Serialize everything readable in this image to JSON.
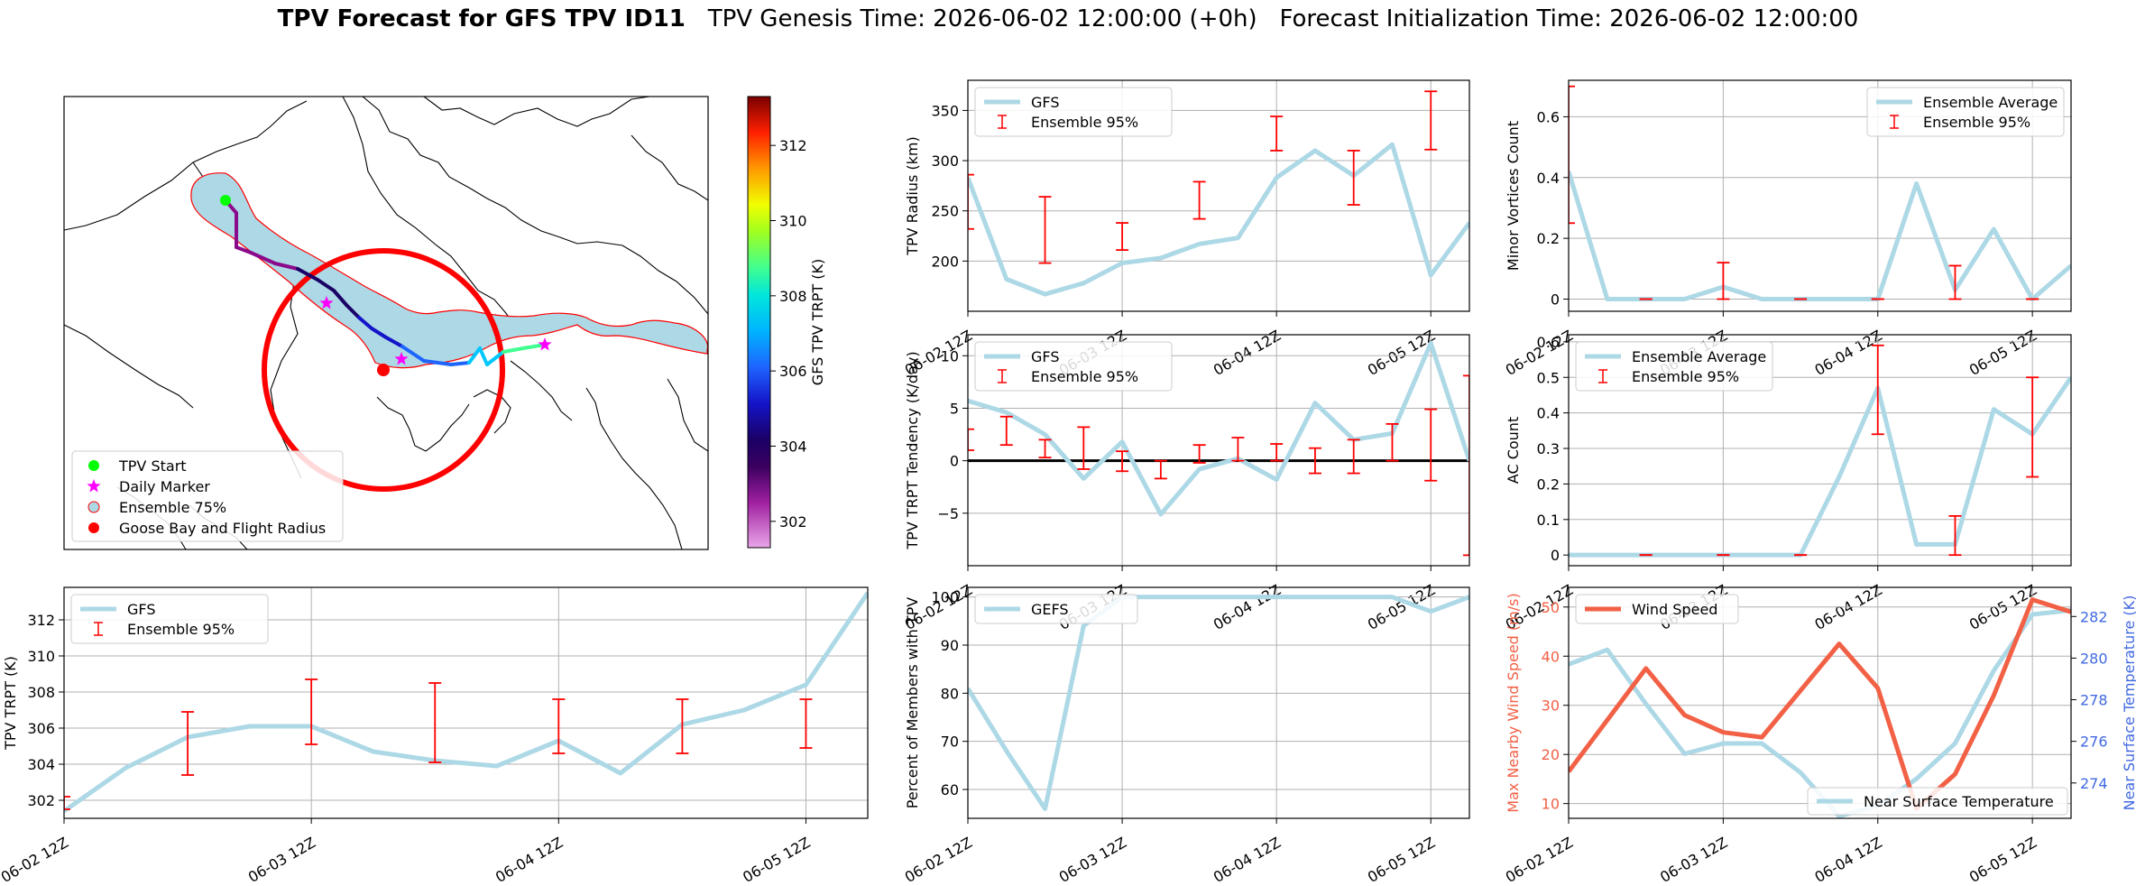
{
  "title": {
    "bold": "TPV Forecast for GFS TPV ID11",
    "genesis": "TPV Genesis Time: 2026-06-02 12:00:00 (+0h)",
    "init": "Forecast Initialization Time: 2026-06-02 12:00:00"
  },
  "colors": {
    "gfs_line": "#add8e6",
    "errorbar": "#ff0000",
    "wind": "#f26045",
    "temp_axis": "#4169e1",
    "land_fill": "#ffffff",
    "ensemble_fill": "#add8e6"
  },
  "time_ticks": [
    "06-02 12Z",
    "06-03 12Z",
    "06-04 12Z",
    "06-05 12Z"
  ],
  "chart_data": [
    {
      "id": "map",
      "type": "map",
      "legend": [
        "TPV Start",
        "Daily Marker",
        "Ensemble 75%",
        "Goose Bay and Flight Radius"
      ],
      "legend_colors": [
        "#00ff00",
        "#ff00ff",
        "#add8e6",
        "#ff0000"
      ],
      "colorbar": {
        "label": "GFS TPV TRPT (K)",
        "ticks": [
          302,
          304,
          306,
          308,
          310,
          312
        ],
        "range": [
          301.3,
          313.3
        ]
      },
      "track_trpt": [
        302.3,
        302.4,
        302.6,
        302.9,
        303.2,
        303.6,
        304.0,
        304.6,
        305.3,
        305.8,
        306.4,
        307.0,
        307.6,
        308.2
      ]
    },
    {
      "id": "radius",
      "type": "line",
      "ylabel": "TPV Radius (km)",
      "ylim": [
        150,
        380
      ],
      "yticks": [
        200,
        250,
        300,
        350
      ],
      "legend": [
        "GFS",
        "Ensemble 95%"
      ],
      "legend_pos": "top-left",
      "x": [
        0,
        0.25,
        0.5,
        0.75,
        1,
        1.25,
        1.5,
        1.75,
        2,
        2.25,
        2.5,
        2.75,
        3,
        3.25
      ],
      "values": [
        283,
        182,
        167,
        178,
        198,
        203,
        217,
        223,
        283,
        310,
        285,
        316,
        186,
        238
      ],
      "errorbars": [
        {
          "x": 0,
          "lo": 232,
          "hi": 286
        },
        {
          "x": 0.5,
          "lo": 198,
          "hi": 264
        },
        {
          "x": 1,
          "lo": 211,
          "hi": 238
        },
        {
          "x": 1.5,
          "lo": 242,
          "hi": 279
        },
        {
          "x": 2,
          "lo": 310,
          "hi": 344
        },
        {
          "x": 2.5,
          "lo": 256,
          "hi": 310
        },
        {
          "x": 3,
          "lo": 311,
          "hi": 369
        }
      ]
    },
    {
      "id": "minor",
      "type": "line",
      "ylabel": "Minor Vortices Count",
      "ylim": [
        -0.04,
        0.72
      ],
      "yticks": [
        0.0,
        0.2,
        0.4,
        0.6
      ],
      "legend": [
        "Ensemble Average",
        "Ensemble 95%"
      ],
      "legend_pos": "top-right",
      "x": [
        0,
        0.25,
        0.5,
        0.75,
        1,
        1.25,
        1.5,
        1.75,
        2,
        2.25,
        2.5,
        2.75,
        3,
        3.25
      ],
      "values": [
        0.42,
        0.0,
        0.0,
        0.0,
        0.04,
        0.0,
        0.0,
        0.0,
        0.0,
        0.38,
        0.03,
        0.23,
        0.0,
        0.11
      ],
      "errorbars": [
        {
          "x": 0,
          "lo": 0.25,
          "hi": 0.7
        },
        {
          "x": 0.5,
          "lo": 0.0,
          "hi": 0.0
        },
        {
          "x": 1,
          "lo": 0.0,
          "hi": 0.12
        },
        {
          "x": 1.5,
          "lo": 0.0,
          "hi": 0.0
        },
        {
          "x": 2,
          "lo": 0.0,
          "hi": 0.0
        },
        {
          "x": 2.5,
          "lo": 0.0,
          "hi": 0.11
        },
        {
          "x": 3,
          "lo": 0.0,
          "hi": 0.0
        }
      ]
    },
    {
      "id": "tendency",
      "type": "line",
      "ylabel": "TPV TRPT Tendency (K/day)",
      "ylim": [
        -10,
        12
      ],
      "yticks": [
        -5,
        0,
        5,
        10
      ],
      "zero_line": true,
      "legend": [
        "GFS",
        "Ensemble 95%"
      ],
      "legend_pos": "top-left",
      "x": [
        0,
        0.25,
        0.5,
        0.75,
        1,
        1.25,
        1.5,
        1.75,
        2,
        2.25,
        2.5,
        2.75,
        3,
        3.25
      ],
      "values": [
        5.7,
        4.6,
        2.5,
        -1.7,
        1.8,
        -5.1,
        -0.8,
        0.2,
        -1.8,
        5.5,
        2.0,
        2.6,
        11.2,
        0.0
      ],
      "errorbars": [
        {
          "x": 0,
          "lo": 1.0,
          "hi": 3.0
        },
        {
          "x": 0.25,
          "lo": 1.5,
          "hi": 4.2
        },
        {
          "x": 0.5,
          "lo": 0.3,
          "hi": 2.0
        },
        {
          "x": 0.75,
          "lo": -0.8,
          "hi": 3.2
        },
        {
          "x": 1,
          "lo": -1.0,
          "hi": 0.9
        },
        {
          "x": 1.25,
          "lo": -1.7,
          "hi": 0.0
        },
        {
          "x": 1.5,
          "lo": -0.2,
          "hi": 1.5
        },
        {
          "x": 1.75,
          "lo": 0.0,
          "hi": 2.2
        },
        {
          "x": 2,
          "lo": 0.0,
          "hi": 1.6
        },
        {
          "x": 2.25,
          "lo": -1.2,
          "hi": 1.2
        },
        {
          "x": 2.5,
          "lo": -1.2,
          "hi": 2.0
        },
        {
          "x": 2.75,
          "lo": 0.0,
          "hi": 3.5
        },
        {
          "x": 3,
          "lo": -1.9,
          "hi": 4.9
        },
        {
          "x": 3.25,
          "lo": -9.0,
          "hi": 8.1
        }
      ]
    },
    {
      "id": "ac",
      "type": "line",
      "ylabel": "AC Count",
      "ylim": [
        -0.03,
        0.62
      ],
      "yticks": [
        0.0,
        0.1,
        0.2,
        0.3,
        0.4,
        0.5,
        0.6
      ],
      "legend": [
        "Ensemble Average",
        "Ensemble 95%"
      ],
      "legend_pos": "top-left",
      "x": [
        0,
        0.25,
        0.5,
        0.75,
        1,
        1.25,
        1.5,
        1.75,
        2,
        2.25,
        2.5,
        2.75,
        3,
        3.25
      ],
      "values": [
        0.0,
        0.0,
        0.0,
        0.0,
        0.0,
        0.0,
        0.0,
        0.22,
        0.47,
        0.03,
        0.03,
        0.41,
        0.34,
        0.5
      ],
      "errorbars": [
        {
          "x": 0.5,
          "lo": 0.0,
          "hi": 0.0
        },
        {
          "x": 1,
          "lo": 0.0,
          "hi": 0.0
        },
        {
          "x": 1.5,
          "lo": 0.0,
          "hi": 0.0
        },
        {
          "x": 2,
          "lo": 0.34,
          "hi": 0.59
        },
        {
          "x": 2.5,
          "lo": 0.0,
          "hi": 0.11
        },
        {
          "x": 3,
          "lo": 0.22,
          "hi": 0.5
        }
      ]
    },
    {
      "id": "trpt",
      "type": "line",
      "ylabel": "TPV TRPT (K)",
      "ylim": [
        301,
        313.8
      ],
      "yticks": [
        302,
        304,
        306,
        308,
        310,
        312
      ],
      "legend": [
        "GFS",
        "Ensemble 95%"
      ],
      "legend_pos": "top-left",
      "x": [
        0,
        0.25,
        0.5,
        0.75,
        1,
        1.25,
        1.5,
        1.75,
        2,
        2.25,
        2.5,
        2.75,
        3,
        3.25
      ],
      "values": [
        301.4,
        303.8,
        305.5,
        306.1,
        306.1,
        304.7,
        304.2,
        303.9,
        305.3,
        303.5,
        306.2,
        307.0,
        308.4,
        313.5
      ],
      "errorbars": [
        {
          "x": 0,
          "lo": 301.5,
          "hi": 302.2
        },
        {
          "x": 0.5,
          "lo": 303.4,
          "hi": 306.9
        },
        {
          "x": 1,
          "lo": 305.1,
          "hi": 308.7
        },
        {
          "x": 1.5,
          "lo": 304.1,
          "hi": 308.5
        },
        {
          "x": 2,
          "lo": 304.6,
          "hi": 307.6
        },
        {
          "x": 2.5,
          "lo": 304.6,
          "hi": 307.6
        },
        {
          "x": 3,
          "lo": 304.9,
          "hi": 307.6
        }
      ]
    },
    {
      "id": "percent",
      "type": "line",
      "ylabel": "Percent of Members with TPV",
      "ylim": [
        54,
        102
      ],
      "yticks": [
        60,
        70,
        80,
        90,
        100
      ],
      "legend": [
        "GEFS"
      ],
      "legend_pos": "top-left",
      "x": [
        0,
        0.25,
        0.5,
        0.75,
        1,
        1.25,
        1.5,
        1.75,
        2,
        2.25,
        2.5,
        2.75,
        3,
        3.25
      ],
      "values": [
        81,
        68,
        56,
        94,
        100,
        100,
        100,
        100,
        100,
        100,
        100,
        100,
        97,
        100
      ]
    },
    {
      "id": "wind_temp",
      "type": "line",
      "ylabel": "Max Nearby Wind Speed (m/s)",
      "ylabel_right": "Near Surface Temperature (K)",
      "ylim": [
        7,
        54
      ],
      "yticks": [
        10,
        20,
        30,
        40,
        50
      ],
      "ylim_right": [
        272.3,
        283.4
      ],
      "yticks_right": [
        274,
        276,
        278,
        280,
        282
      ],
      "x": [
        0,
        0.25,
        0.5,
        0.75,
        1,
        1.25,
        1.5,
        1.75,
        2,
        2.25,
        2.5,
        2.75,
        3,
        3.25
      ],
      "series": [
        {
          "name": "Wind Speed",
          "axis": "left",
          "values": [
            16.5,
            27,
            37.5,
            28,
            24.5,
            23.5,
            33,
            42.5,
            33.5,
            9,
            16,
            32,
            51.5,
            49
          ]
        },
        {
          "name": "Near Surface Temperature",
          "axis": "right",
          "values": [
            279.7,
            280.4,
            277.8,
            275.4,
            275.9,
            275.9,
            274.5,
            272.4,
            272.9,
            274.2,
            275.9,
            279.4,
            282.1,
            282.3
          ]
        }
      ]
    }
  ]
}
